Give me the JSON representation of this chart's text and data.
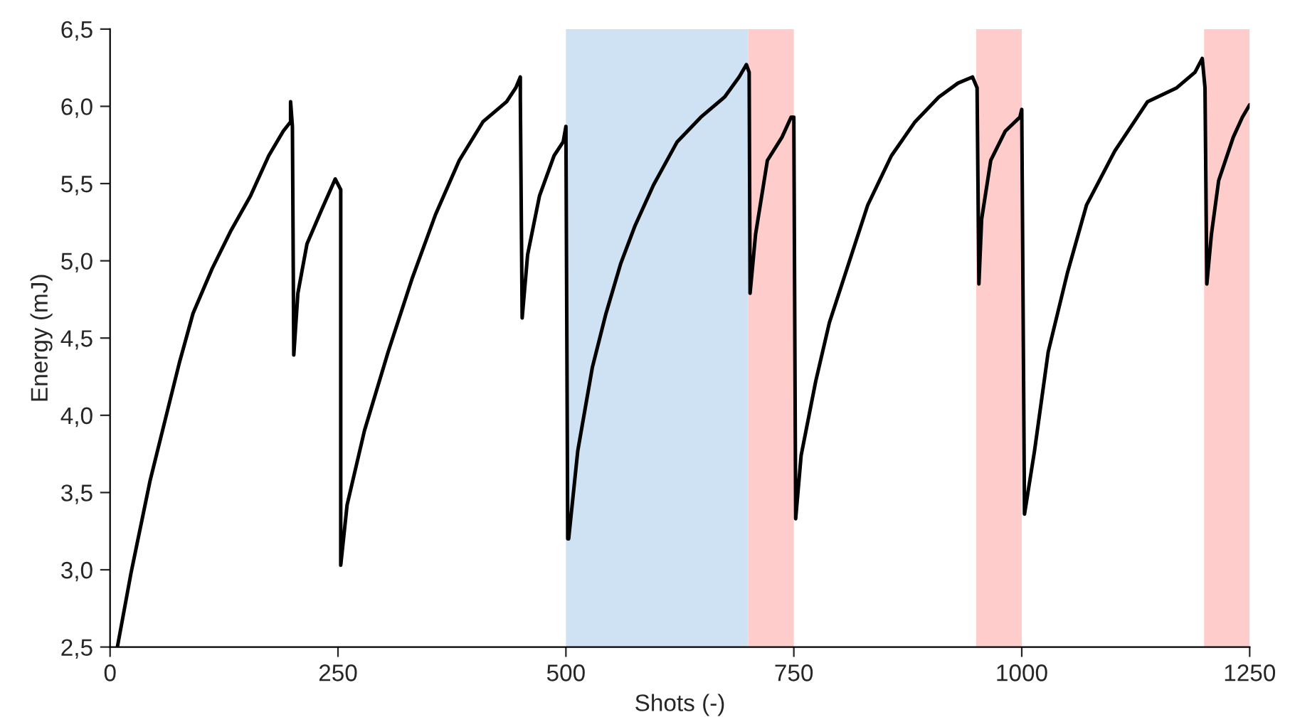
{
  "chart_data": {
    "type": "line",
    "xlabel": "Shots (-)",
    "ylabel": "Energy (mJ)",
    "xlim": [
      0,
      1250
    ],
    "xticks": [
      0,
      250,
      500,
      750,
      1000,
      1250
    ],
    "ylim": [
      2.5,
      6.5
    ],
    "yticks": [
      {
        "value": 2.5,
        "label": "2,5"
      },
      {
        "value": 3.0,
        "label": "3,0"
      },
      {
        "value": 3.5,
        "label": "3,5"
      },
      {
        "value": 4.0,
        "label": "4,0"
      },
      {
        "value": 4.5,
        "label": "4,5"
      },
      {
        "value": 5.0,
        "label": "5,0"
      },
      {
        "value": 5.5,
        "label": "5,5"
      },
      {
        "value": 6.0,
        "label": "6,0"
      },
      {
        "value": 6.5,
        "label": "6,5"
      }
    ],
    "grid": false,
    "marker": "none",
    "line_style": "solid",
    "bands": [
      {
        "axis": "x",
        "from": 500,
        "to": 700,
        "color": "#cfe2f3"
      },
      {
        "axis": "x",
        "from": 700,
        "to": 750,
        "color": "#ffcccc"
      },
      {
        "axis": "x",
        "from": 950,
        "to": 1000,
        "color": "#ffcccc"
      },
      {
        "axis": "x",
        "from": 1200,
        "to": 1250,
        "color": "#ffcccc"
      }
    ],
    "series": [
      {
        "color": "#000000",
        "x": [
          8,
          23,
          44,
          60,
          76,
          91,
          112,
          133,
          154,
          174,
          190,
          198,
          198,
          200,
          201.5,
          206,
          216,
          232,
          247,
          253,
          253,
          260,
          279,
          305,
          331,
          357,
          383,
          409,
          435,
          445,
          450,
          450,
          452,
          458,
          471,
          487,
          497,
          500,
          502,
          503,
          513,
          529,
          544,
          560,
          576,
          596,
          622,
          648,
          674,
          690,
          698,
          701,
          702,
          708,
          721,
          737,
          747,
          750,
          752,
          758,
          774,
          789,
          810,
          831,
          857,
          883,
          909,
          930,
          946,
          951,
          953,
          956,
          966,
          982,
          998,
          1000,
          1003,
          1014,
          1029,
          1050,
          1071,
          1102,
          1138,
          1170,
          1190,
          1198,
          1201,
          1203,
          1208,
          1216,
          1232,
          1242,
          1250
        ],
        "values": [
          2.5,
          2.98,
          3.58,
          3.96,
          4.34,
          4.66,
          4.95,
          5.2,
          5.42,
          5.68,
          5.84,
          5.9,
          6.03,
          5.87,
          4.39,
          4.79,
          5.11,
          5.33,
          5.53,
          5.46,
          3.03,
          3.42,
          3.9,
          4.41,
          4.88,
          5.3,
          5.65,
          5.9,
          6.03,
          6.12,
          6.19,
          6.06,
          4.63,
          5.04,
          5.42,
          5.68,
          5.77,
          5.87,
          3.2,
          3.2,
          3.77,
          4.31,
          4.66,
          4.98,
          5.23,
          5.49,
          5.77,
          5.93,
          6.06,
          6.19,
          6.27,
          6.22,
          4.79,
          5.17,
          5.65,
          5.8,
          5.93,
          5.93,
          3.33,
          3.74,
          4.22,
          4.6,
          4.98,
          5.36,
          5.68,
          5.9,
          6.06,
          6.15,
          6.19,
          6.12,
          4.85,
          5.27,
          5.65,
          5.84,
          5.93,
          5.98,
          3.36,
          3.77,
          4.41,
          4.92,
          5.36,
          5.71,
          6.03,
          6.12,
          6.22,
          6.31,
          6.12,
          4.85,
          5.17,
          5.52,
          5.8,
          5.93,
          6.01
        ]
      }
    ]
  }
}
